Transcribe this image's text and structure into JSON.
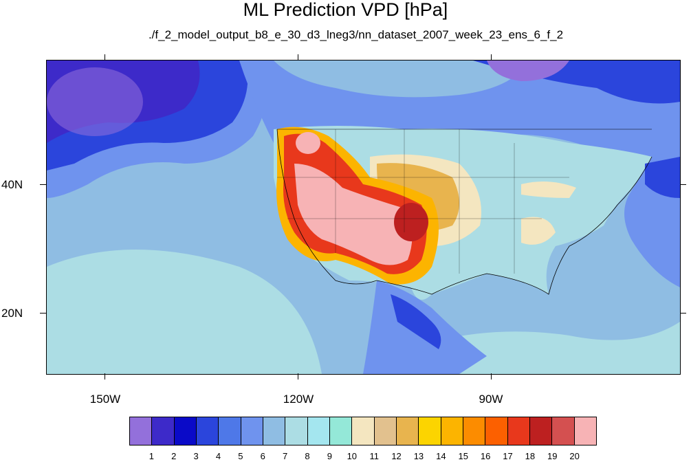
{
  "title": "ML Prediction VPD [hPa]",
  "subtitle": "./f_2_model_output_b8_e_30_d3_lneg3/nn_dataset_2007_week_23_ens_6_f_2",
  "lon_labels": [
    "150W",
    "120W",
    "90W"
  ],
  "lat_labels": [
    "40N",
    "20N"
  ],
  "colorbar": {
    "colors": [
      "#9370db",
      "#3d2ac9",
      "#0a0ac8",
      "#2b45dc",
      "#4e78e8",
      "#6f93ee",
      "#8fbde3",
      "#acdde4",
      "#a4e6ef",
      "#94e8d8",
      "#f4e6c0",
      "#e2c18e",
      "#e8b44e",
      "#fcd400",
      "#fcb400",
      "#fc8c00",
      "#fc6000",
      "#e8381c",
      "#bd2020",
      "#d45050",
      "#f7b3b5"
    ],
    "levels": [
      "1",
      "2",
      "3",
      "4",
      "5",
      "6",
      "7",
      "8",
      "9",
      "10",
      "11",
      "12",
      "13",
      "14",
      "15",
      "16",
      "17",
      "18",
      "19",
      "20"
    ]
  }
}
